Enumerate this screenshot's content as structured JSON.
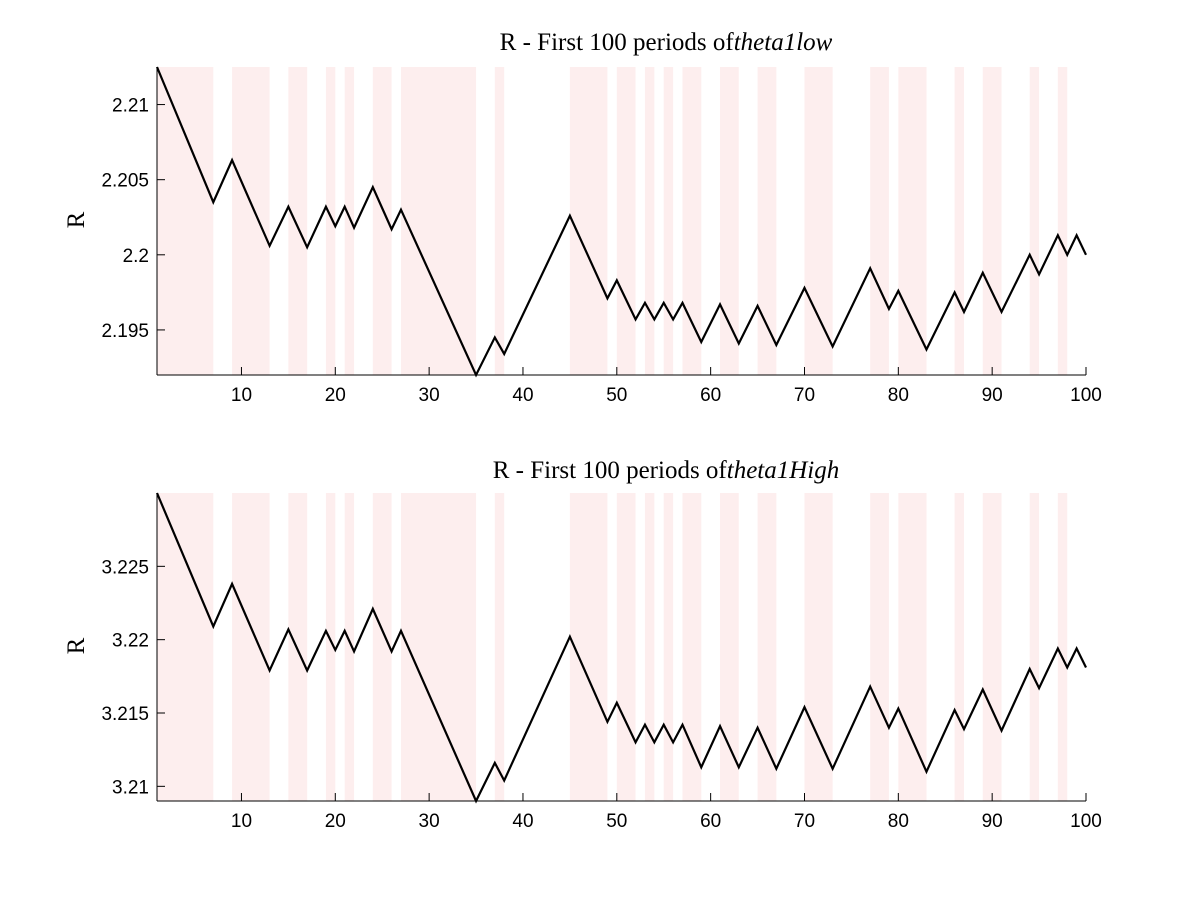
{
  "chart_data": [
    {
      "type": "line",
      "title_prefix": "R - First 100 periods of",
      "title_suffix": "theta1low",
      "ylabel": "R",
      "xlabel": "",
      "xlim": [
        1,
        100
      ],
      "ylim": [
        2.192,
        2.2125
      ],
      "xticks": [
        10,
        20,
        30,
        40,
        50,
        60,
        70,
        80,
        90,
        100
      ],
      "yticks": [
        2.195,
        2.2,
        2.205,
        2.21
      ],
      "ytick_labels": [
        "2.195",
        "2.2",
        "2.205",
        "2.21"
      ],
      "shade_color": "#fdeeee",
      "shaded_ranges": [
        [
          1,
          7
        ],
        [
          9,
          13
        ],
        [
          15,
          17
        ],
        [
          19,
          20
        ],
        [
          21,
          22
        ],
        [
          24,
          26
        ],
        [
          27,
          35
        ],
        [
          37,
          38
        ],
        [
          45,
          49
        ],
        [
          50,
          52
        ],
        [
          53,
          54
        ],
        [
          55,
          56
        ],
        [
          57,
          59
        ],
        [
          61,
          63
        ],
        [
          65,
          67
        ],
        [
          70,
          73
        ],
        [
          77,
          79
        ],
        [
          80,
          83
        ],
        [
          86,
          87
        ],
        [
          89,
          91
        ],
        [
          94,
          95
        ],
        [
          97,
          98
        ]
      ],
      "line_color": "#000000",
      "series": [
        {
          "x": [
            1,
            7,
            9,
            13,
            15,
            17,
            19,
            20,
            21,
            22,
            24,
            26,
            27,
            35,
            37,
            38,
            45,
            49,
            50,
            52,
            53,
            54,
            55,
            56,
            57,
            59,
            61,
            63,
            65,
            67,
            70,
            73,
            77,
            79,
            80,
            83,
            86,
            87,
            89,
            91,
            94,
            95,
            97,
            98,
            99,
            100
          ],
          "y": [
            2.2125,
            2.2035,
            2.2063,
            2.2006,
            2.2032,
            2.2005,
            2.2032,
            2.2019,
            2.2032,
            2.2018,
            2.2045,
            2.2017,
            2.203,
            2.192,
            2.1945,
            2.1934,
            2.2026,
            2.1971,
            2.1983,
            2.1957,
            2.1968,
            2.1957,
            2.1968,
            2.1957,
            2.1968,
            2.1942,
            2.1967,
            2.1941,
            2.1966,
            2.194,
            2.1978,
            2.1939,
            2.1991,
            2.1964,
            2.1976,
            2.1937,
            2.1975,
            2.1962,
            2.1988,
            2.1962,
            2.2,
            2.1987,
            2.2013,
            2.2,
            2.2013,
            2.2
          ]
        }
      ]
    },
    {
      "type": "line",
      "title_prefix": "R - First 100 periods of",
      "title_suffix": "theta1High",
      "ylabel": "R",
      "xlabel": "",
      "xlim": [
        1,
        100
      ],
      "ylim": [
        3.209,
        3.23
      ],
      "xticks": [
        10,
        20,
        30,
        40,
        50,
        60,
        70,
        80,
        90,
        100
      ],
      "yticks": [
        3.21,
        3.215,
        3.22,
        3.225
      ],
      "ytick_labels": [
        "3.21",
        "3.215",
        "3.22",
        "3.225"
      ],
      "shade_color": "#fdeeee",
      "shaded_ranges": [
        [
          1,
          7
        ],
        [
          9,
          13
        ],
        [
          15,
          17
        ],
        [
          19,
          20
        ],
        [
          21,
          22
        ],
        [
          24,
          26
        ],
        [
          27,
          35
        ],
        [
          37,
          38
        ],
        [
          45,
          49
        ],
        [
          50,
          52
        ],
        [
          53,
          54
        ],
        [
          55,
          56
        ],
        [
          57,
          59
        ],
        [
          61,
          63
        ],
        [
          65,
          67
        ],
        [
          70,
          73
        ],
        [
          77,
          79
        ],
        [
          80,
          83
        ],
        [
          86,
          87
        ],
        [
          89,
          91
        ],
        [
          94,
          95
        ],
        [
          97,
          98
        ]
      ],
      "line_color": "#000000",
      "series": [
        {
          "x": [
            1,
            7,
            9,
            13,
            15,
            17,
            19,
            20,
            21,
            22,
            24,
            26,
            27,
            35,
            37,
            38,
            45,
            49,
            50,
            52,
            53,
            54,
            55,
            56,
            57,
            59,
            61,
            63,
            65,
            67,
            70,
            73,
            77,
            79,
            80,
            83,
            86,
            87,
            89,
            91,
            94,
            95,
            97,
            98,
            99,
            100
          ],
          "y": [
            3.23,
            3.2209,
            3.2238,
            3.2179,
            3.2207,
            3.2179,
            3.2206,
            3.2193,
            3.2206,
            3.2192,
            3.2221,
            3.2192,
            3.2206,
            3.209,
            3.2116,
            3.2104,
            3.2202,
            3.2144,
            3.2157,
            3.213,
            3.2142,
            3.213,
            3.2142,
            3.213,
            3.2142,
            3.2113,
            3.2141,
            3.2113,
            3.214,
            3.2112,
            3.2154,
            3.2112,
            3.2168,
            3.214,
            3.2153,
            3.211,
            3.2152,
            3.2139,
            3.2166,
            3.2138,
            3.218,
            3.2167,
            3.2194,
            3.2181,
            3.2194,
            3.2181
          ]
        }
      ]
    }
  ]
}
